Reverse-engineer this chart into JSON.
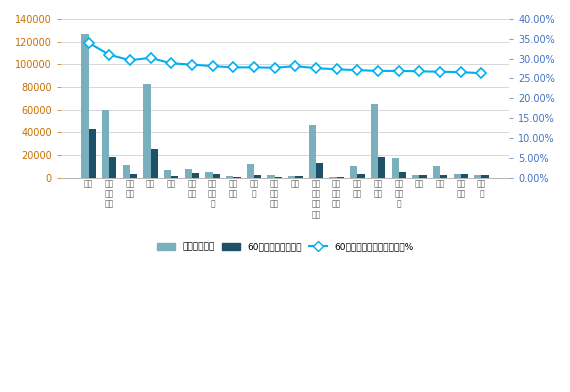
{
  "x_labels": [
    "韩国",
    "家大\n利亚\n联棒",
    "比利\n时棒",
    "圆德",
    "刚柔",
    "保加\n利亚",
    "马提\n尼克\n可",
    "哥伦\n比亚",
    "圆希\n腊",
    "新文\n巴亚\n最新",
    "其他",
    "拉膜\n维亚\n联棒\n棒棒",
    "哈维\n尔曼\n联邦",
    "保加\n尔图",
    "尼泊\n尔数",
    "采克\n共和\n国",
    "圆发",
    "刚柔",
    "采克\n利数",
    "保圆\n材"
  ],
  "total_pop": [
    126529,
    59290,
    11000,
    82850,
    6200,
    7100,
    4500,
    1100,
    12000,
    2500,
    1500,
    46500,
    500,
    10500,
    65000,
    17500,
    2500,
    10000,
    3000,
    2000
  ],
  "pop_60": [
    43000,
    18500,
    2800,
    25000,
    1200,
    4000,
    3200,
    350,
    2100,
    500,
    1600,
    13000,
    500,
    2800,
    18000,
    4500,
    2100,
    2500,
    2800,
    2500
  ],
  "ratio_60": [
    0.34,
    0.31,
    0.296,
    0.302,
    0.288,
    0.285,
    0.281,
    0.278,
    0.278,
    0.277,
    0.281,
    0.276,
    0.273,
    0.271,
    0.269,
    0.269,
    0.268,
    0.267,
    0.266,
    0.263
  ],
  "bar_color_total": "#7aafbe",
  "bar_color_60": "#1e5068",
  "line_color": "#00b0f0",
  "marker_facecolor": "#ffffff",
  "marker_edgecolor": "#00b0f0",
  "grid_color": "#c8c8c8",
  "left_tick_color": "#c87000",
  "right_tick_color": "#4472c4",
  "x_tick_color": "#595959",
  "bg_color": "#ffffff",
  "ylim_left": [
    0,
    140000
  ],
  "yticks_left": [
    0,
    20000,
    40000,
    60000,
    80000,
    100000,
    120000,
    140000
  ],
  "ylim_right": [
    0.0,
    0.4
  ],
  "yticks_right": [
    0.0,
    0.05,
    0.1,
    0.15,
    0.2,
    0.25,
    0.3,
    0.35,
    0.4
  ],
  "legend_labels": [
    "总人口：千人",
    "60岁以上人口：千人",
    "60岁以上人口占总人口比例%"
  ],
  "bar_width": 0.35,
  "figsize": [
    5.7,
    3.92
  ],
  "dpi": 100
}
